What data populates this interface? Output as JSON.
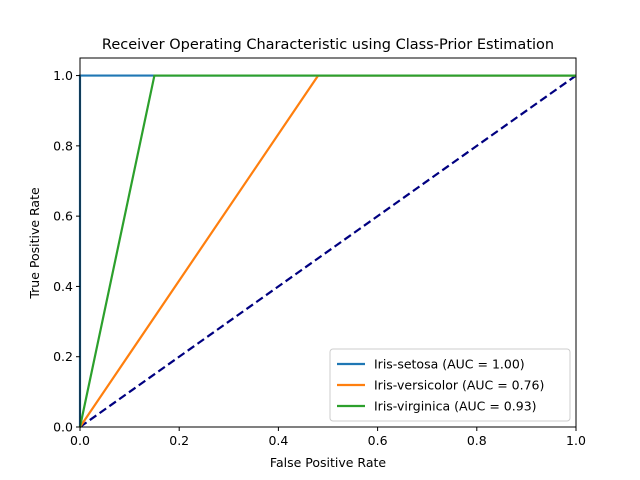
{
  "chart_data": {
    "type": "line",
    "title": "Receiver Operating Characteristic using Class-Prior Estimation",
    "xlabel": "False Positive Rate",
    "ylabel": "True Positive Rate",
    "xlim": [
      0.0,
      1.0
    ],
    "ylim": [
      0.0,
      1.05
    ],
    "xticks": [
      "0.0",
      "0.2",
      "0.4",
      "0.6",
      "0.8",
      "1.0"
    ],
    "yticks": [
      "0.0",
      "0.2",
      "0.4",
      "0.6",
      "0.8",
      "1.0"
    ],
    "grid": false,
    "legend_position": "lower-right",
    "series": [
      {
        "name": "Iris-setosa (AUC = 1.00)",
        "color": "#1f77b4",
        "points": [
          [
            0.0,
            0.0
          ],
          [
            0.0,
            1.0
          ],
          [
            1.0,
            1.0
          ]
        ]
      },
      {
        "name": "Iris-versicolor (AUC = 0.76)",
        "color": "#ff7f0e",
        "points": [
          [
            0.0,
            0.0
          ],
          [
            0.48,
            1.0
          ],
          [
            1.0,
            1.0
          ]
        ]
      },
      {
        "name": "Iris-virginica (AUC = 0.93)",
        "color": "#2ca02c",
        "points": [
          [
            0.0,
            0.0
          ],
          [
            0.15,
            1.0
          ],
          [
            1.0,
            1.0
          ]
        ]
      }
    ],
    "reference_line": {
      "color": "#000080",
      "style": "dashed",
      "points": [
        [
          0.0,
          0.0
        ],
        [
          1.0,
          1.0
        ]
      ]
    }
  }
}
